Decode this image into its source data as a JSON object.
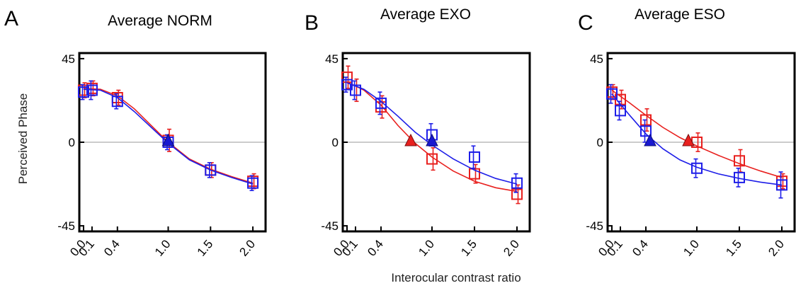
{
  "figure": {
    "ylabel": "Perceived Phase",
    "xlabel": "Interocular contrast ratio"
  },
  "chart_data": [
    {
      "type": "scatter",
      "panel": "A",
      "title": "Average NORM",
      "x_ticks": [
        "0.0",
        "0.1",
        "0.4",
        "1.0",
        "1.5",
        "2.0"
      ],
      "y_ticks": [
        "45",
        "0",
        "-45"
      ],
      "xlim": [
        -0.05,
        2.15
      ],
      "ylim": [
        -48,
        48
      ],
      "series": [
        {
          "color": "#e8201e",
          "points": [
            {
              "x": 0.0,
              "y": 28,
              "err": 4
            },
            {
              "x": 0.1,
              "y": 29,
              "err": 4
            },
            {
              "x": 0.4,
              "y": 24,
              "err": 4
            },
            {
              "x": 1.0,
              "y": 1,
              "err": 6
            },
            {
              "x": 1.5,
              "y": -15,
              "err": 4
            },
            {
              "x": 2.0,
              "y": -21,
              "err": 4
            }
          ],
          "fit": [
            [
              0.0,
              29
            ],
            [
              0.2,
              28.5
            ],
            [
              0.4,
              25
            ],
            [
              0.6,
              18
            ],
            [
              0.8,
              9
            ],
            [
              1.0,
              0
            ],
            [
              1.25,
              -9
            ],
            [
              1.5,
              -14.5
            ],
            [
              1.75,
              -18.5
            ],
            [
              2.0,
              -22
            ]
          ],
          "marker_x": 1.0
        },
        {
          "color": "#1e1ee8",
          "points": [
            {
              "x": 0.0,
              "y": 27,
              "err": 4
            },
            {
              "x": 0.1,
              "y": 28,
              "err": 5
            },
            {
              "x": 0.4,
              "y": 22,
              "err": 4
            },
            {
              "x": 1.0,
              "y": 0,
              "err": 4
            },
            {
              "x": 1.5,
              "y": -15,
              "err": 4
            },
            {
              "x": 2.0,
              "y": -22,
              "err": 4
            }
          ],
          "fit": [
            [
              0.0,
              28.5
            ],
            [
              0.2,
              28
            ],
            [
              0.4,
              24
            ],
            [
              0.6,
              16.5
            ],
            [
              0.8,
              8
            ],
            [
              1.0,
              -0.5
            ],
            [
              1.25,
              -9.5
            ],
            [
              1.5,
              -15
            ],
            [
              1.75,
              -19
            ],
            [
              2.0,
              -22.5
            ]
          ],
          "marker_x": 1.0
        }
      ]
    },
    {
      "type": "scatter",
      "panel": "B",
      "title": "Average EXO",
      "x_ticks": [
        "0.0",
        "0.1",
        "0.4",
        "1.0",
        "1.5",
        "2.0"
      ],
      "y_ticks": [
        "45",
        "0",
        "-45"
      ],
      "xlim": [
        -0.05,
        2.15
      ],
      "ylim": [
        -48,
        48
      ],
      "series": [
        {
          "color": "#e8201e",
          "points": [
            {
              "x": 0.0,
              "y": 35,
              "err": 6
            },
            {
              "x": 0.1,
              "y": 28,
              "err": 6
            },
            {
              "x": 0.4,
              "y": 19,
              "err": 6
            },
            {
              "x": 1.0,
              "y": -9,
              "err": 6
            },
            {
              "x": 1.5,
              "y": -17,
              "err": 5
            },
            {
              "x": 2.0,
              "y": -28,
              "err": 5
            }
          ],
          "fit": [
            [
              0.0,
              32.5
            ],
            [
              0.2,
              28
            ],
            [
              0.4,
              20
            ],
            [
              0.6,
              9
            ],
            [
              0.8,
              -0.5
            ],
            [
              1.0,
              -8
            ],
            [
              1.25,
              -15.5
            ],
            [
              1.5,
              -21
            ],
            [
              1.75,
              -24.5
            ],
            [
              2.0,
              -26.5
            ]
          ],
          "marker_x": 0.75
        },
        {
          "color": "#1e1ee8",
          "points": [
            {
              "x": 0.0,
              "y": 31,
              "err": 4
            },
            {
              "x": 0.1,
              "y": 28,
              "err": 5
            },
            {
              "x": 0.4,
              "y": 21,
              "err": 6
            },
            {
              "x": 1.0,
              "y": 4,
              "err": 6
            },
            {
              "x": 1.5,
              "y": -8,
              "err": 6
            },
            {
              "x": 2.0,
              "y": -22,
              "err": 5
            }
          ],
          "fit": [
            [
              0.0,
              32
            ],
            [
              0.2,
              28.5
            ],
            [
              0.4,
              22
            ],
            [
              0.6,
              14
            ],
            [
              0.8,
              5.5
            ],
            [
              1.0,
              -1.5
            ],
            [
              1.25,
              -9
            ],
            [
              1.5,
              -15
            ],
            [
              1.75,
              -19.5
            ],
            [
              2.0,
              -22.5
            ]
          ],
          "marker_x": 1.0
        }
      ]
    },
    {
      "type": "scatter",
      "panel": "C",
      "title": "Average ESO",
      "x_ticks": [
        "0.0",
        "0.1",
        "0.4",
        "1.0",
        "1.5",
        "2.0"
      ],
      "y_ticks": [
        "45",
        "0",
        "-45"
      ],
      "xlim": [
        -0.05,
        2.15
      ],
      "ylim": [
        -48,
        48
      ],
      "series": [
        {
          "color": "#e8201e",
          "points": [
            {
              "x": 0.0,
              "y": 27,
              "err": 4
            },
            {
              "x": 0.1,
              "y": 23,
              "err": 5
            },
            {
              "x": 0.4,
              "y": 12,
              "err": 6
            },
            {
              "x": 1.0,
              "y": 0,
              "err": 5
            },
            {
              "x": 1.5,
              "y": -10,
              "err": 6
            },
            {
              "x": 2.0,
              "y": -21,
              "err": 4
            }
          ],
          "fit": [
            [
              0.0,
              28
            ],
            [
              0.2,
              21.5
            ],
            [
              0.4,
              14.5
            ],
            [
              0.6,
              8
            ],
            [
              0.8,
              2.5
            ],
            [
              1.0,
              -2
            ],
            [
              1.25,
              -7
            ],
            [
              1.5,
              -11.5
            ],
            [
              1.75,
              -15.5
            ],
            [
              2.0,
              -19
            ]
          ],
          "marker_x": 0.9
        },
        {
          "color": "#1e1ee8",
          "points": [
            {
              "x": 0.0,
              "y": 26,
              "err": 5
            },
            {
              "x": 0.1,
              "y": 17,
              "err": 5
            },
            {
              "x": 0.4,
              "y": 6,
              "err": 6
            },
            {
              "x": 1.0,
              "y": -14,
              "err": 5
            },
            {
              "x": 1.5,
              "y": -19,
              "err": 5
            },
            {
              "x": 2.0,
              "y": -23,
              "err": 7
            }
          ],
          "fit": [
            [
              0.0,
              26
            ],
            [
              0.2,
              15
            ],
            [
              0.4,
              4.5
            ],
            [
              0.6,
              -3.5
            ],
            [
              0.8,
              -9.5
            ],
            [
              1.0,
              -13.5
            ],
            [
              1.25,
              -17
            ],
            [
              1.5,
              -19.5
            ],
            [
              1.75,
              -21.5
            ],
            [
              2.0,
              -23
            ]
          ],
          "marker_x": 0.45
        }
      ]
    }
  ]
}
